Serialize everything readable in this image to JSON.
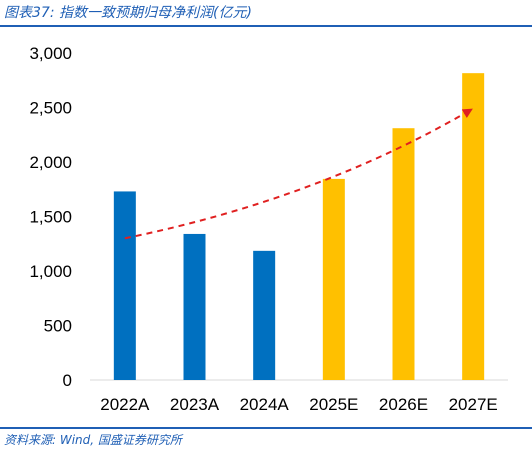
{
  "figure": {
    "title": "图表37: 指数一致预期归母净利润(亿元)",
    "source": "资料来源: Wind, 国盛证券研究所"
  },
  "chart_data": {
    "type": "bar",
    "categories": [
      "2022A",
      "2023A",
      "2024A",
      "2025E",
      "2026E",
      "2027E"
    ],
    "values": [
      1730,
      1340,
      1185,
      1845,
      2310,
      2815
    ],
    "bar_colors": [
      "#0070c0",
      "#0070c0",
      "#0070c0",
      "#ffc000",
      "#ffc000",
      "#ffc000"
    ],
    "ylim": [
      0,
      3000
    ],
    "yticks": [
      0,
      500,
      1000,
      1500,
      2000,
      2500,
      3000
    ],
    "ytick_labels": [
      "0",
      "500",
      "1,000",
      "1,500",
      "2,000",
      "2,500",
      "3,000"
    ],
    "grid": false,
    "trend_arrow": {
      "from_value": 1300,
      "to_value": 2480,
      "color": "#e02020",
      "style": "dashed"
    }
  }
}
